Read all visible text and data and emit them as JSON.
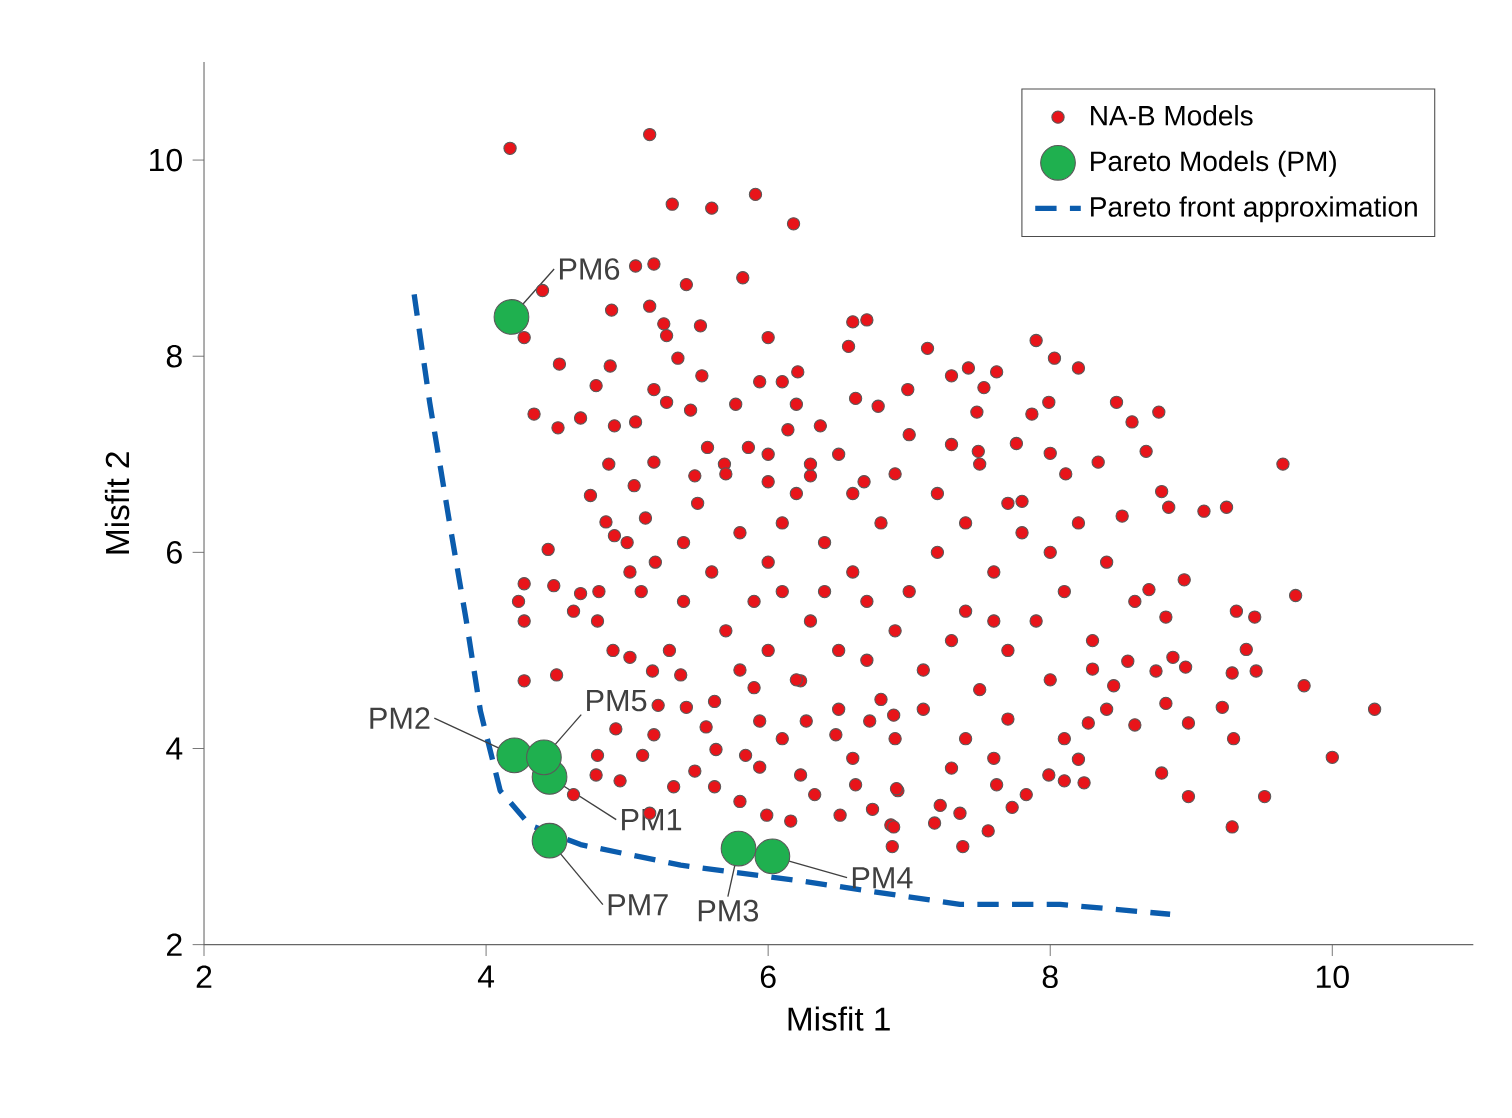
{
  "chart_data": {
    "type": "scatter",
    "xlabel": "Misfit 1",
    "ylabel": "Misfit 2",
    "xlim": [
      2,
      11
    ],
    "ylim": [
      2,
      11
    ],
    "xticks": [
      2,
      4,
      6,
      8,
      10
    ],
    "yticks": [
      2,
      4,
      6,
      8,
      10
    ],
    "legend": "top right",
    "series": [
      {
        "name": "NA-B Models",
        "marker": "circle",
        "color": "#e8141a",
        "x": [
          4.17,
          5.16,
          5.32,
          5.6,
          5.91,
          6.18,
          5.06,
          5.19,
          5.42,
          5.82,
          4.4,
          4.89,
          5.16,
          4.27,
          5.26,
          5.28,
          5.52,
          6.0,
          6.6,
          6.7,
          6.57,
          4.52,
          4.88,
          4.78,
          5.36,
          5.53,
          5.94,
          6.1,
          6.21,
          4.34,
          4.51,
          4.67,
          4.91,
          5.19,
          5.28,
          5.45,
          5.77,
          6.2,
          6.62,
          6.78,
          6.99,
          5.06,
          5.57,
          5.86,
          6.14,
          6.37,
          4.87,
          5.19,
          4.74,
          5.05,
          5.48,
          5.69,
          6.0,
          6.3,
          6.68,
          4.85,
          5.13,
          9.74,
          9.32,
          9.45,
          9.39,
          9.29,
          9.46,
          9.8,
          10.3,
          9.22,
          9.3,
          10.0,
          9.52,
          8.98,
          9.29,
          8.79,
          8.98,
          8.82,
          8.6,
          8.45,
          8.75,
          8.96,
          8.87,
          8.55,
          8.3,
          8.82,
          8.95,
          8.7,
          8.24,
          8.1,
          7.99,
          7.83,
          7.73,
          7.56,
          7.38,
          7.36,
          7.18,
          6.88,
          6.87,
          6.92,
          7.22,
          7.62,
          8.2,
          8.27,
          9.65,
          9.25,
          9.09,
          8.68,
          8.77,
          8.58,
          8.47,
          7.9,
          8.03,
          8.2,
          7.99,
          7.87,
          8.34,
          7.13,
          7.42,
          7.62,
          7.53,
          7.3,
          7.48,
          7.49,
          7.76,
          8.0,
          8.11,
          8.79,
          8.84,
          8.51,
          7.8,
          4.44,
          4.27,
          4.48,
          4.23,
          4.27,
          4.67,
          4.62,
          4.79,
          5.02,
          4.91,
          4.27,
          4.5,
          5.02,
          5.18,
          5.38,
          5.22,
          4.92,
          5.19,
          4.79,
          5.11,
          4.78,
          4.95,
          4.62,
          5.16,
          5.33,
          5.48,
          5.63,
          5.62,
          5.84,
          5.8,
          5.94,
          5.99,
          6.16,
          6.23,
          6.33,
          6.51,
          6.74,
          6.89,
          6.91,
          6.62,
          6.48,
          6.72,
          6.89,
          6.27,
          5.94,
          5.56,
          5.62,
          5.42,
          5.9,
          6.23,
          5.5,
          5.8,
          6.0,
          6.2,
          6.4,
          6.6,
          6.8,
          7.0,
          7.2,
          7.4,
          6.3,
          6.5,
          6.7,
          6.9,
          7.1,
          7.3,
          7.5,
          7.7,
          7.9,
          8.1,
          7.6,
          7.8,
          8.0,
          8.2,
          8.4,
          8.6,
          8.3,
          8.0,
          7.7,
          7.4,
          7.1,
          6.8,
          6.5,
          6.2,
          6.0,
          5.7,
          5.4,
          5.2,
          5.0,
          4.8,
          4.9,
          5.3,
          5.6,
          5.9,
          6.1,
          6.3,
          6.6,
          6.9,
          7.2,
          7.5,
          7.7,
          7.3,
          7.0,
          6.5,
          6.0,
          5.7,
          5.4,
          5.1,
          6.7,
          7.4,
          7.6,
          6.4,
          6.1,
          5.8,
          6.9,
          7.3,
          7.6,
          6.6,
          6.1,
          8.4,
          8.1
        ],
        "values": [
          10.12,
          10.26,
          9.55,
          9.51,
          9.65,
          9.35,
          8.92,
          8.94,
          8.73,
          8.8,
          8.67,
          8.47,
          8.51,
          8.19,
          8.33,
          8.21,
          8.31,
          8.19,
          8.35,
          8.37,
          8.1,
          7.92,
          7.9,
          7.7,
          7.98,
          7.8,
          7.74,
          7.74,
          7.84,
          7.41,
          7.27,
          7.37,
          7.29,
          7.66,
          7.53,
          7.45,
          7.51,
          7.51,
          7.57,
          7.49,
          7.66,
          7.33,
          7.07,
          7.07,
          7.25,
          7.29,
          6.9,
          6.92,
          6.58,
          6.68,
          6.78,
          6.9,
          6.72,
          6.78,
          6.72,
          6.31,
          6.35,
          5.56,
          5.4,
          5.34,
          5.01,
          4.77,
          4.79,
          4.64,
          4.4,
          4.42,
          4.1,
          3.91,
          3.51,
          3.51,
          3.2,
          3.75,
          4.26,
          4.46,
          4.24,
          4.64,
          4.79,
          4.83,
          4.93,
          4.89,
          4.81,
          5.34,
          5.72,
          5.62,
          3.65,
          3.67,
          3.73,
          3.53,
          3.4,
          3.16,
          3.0,
          3.34,
          3.24,
          3.0,
          3.22,
          3.57,
          3.42,
          3.63,
          3.89,
          4.26,
          6.9,
          6.46,
          6.42,
          7.03,
          7.43,
          7.33,
          7.53,
          8.16,
          7.98,
          7.88,
          7.53,
          7.41,
          6.92,
          8.08,
          7.88,
          7.84,
          7.68,
          7.8,
          7.43,
          7.03,
          7.11,
          7.01,
          6.8,
          6.62,
          6.46,
          6.37,
          6.52,
          6.03,
          5.68,
          5.66,
          5.5,
          5.3,
          5.58,
          5.4,
          5.3,
          5.8,
          6.17,
          4.69,
          4.75,
          4.93,
          4.79,
          4.75,
          4.44,
          4.2,
          4.14,
          3.93,
          3.93,
          3.73,
          3.67,
          3.53,
          3.34,
          3.61,
          3.77,
          3.99,
          3.61,
          3.93,
          3.46,
          3.81,
          3.32,
          3.26,
          3.73,
          3.53,
          3.32,
          3.38,
          3.2,
          3.59,
          3.63,
          4.14,
          4.28,
          4.34,
          4.28,
          4.28,
          4.22,
          4.48,
          4.42,
          4.62,
          4.69,
          6.5,
          6.2,
          5.9,
          6.6,
          6.1,
          5.8,
          6.3,
          5.6,
          6.0,
          5.4,
          5.3,
          5.0,
          4.9,
          5.2,
          4.8,
          5.1,
          4.6,
          5.0,
          5.3,
          5.6,
          5.8,
          6.2,
          6.0,
          6.3,
          5.9,
          5.5,
          5.1,
          4.7,
          4.3,
          4.1,
          4.4,
          4.5,
          4.4,
          4.7,
          5.0,
          5.2,
          5.5,
          5.9,
          6.1,
          5.6,
          5.0,
          5.0,
          5.8,
          5.5,
          6.3,
          6.9,
          6.6,
          6.8,
          6.6,
          6.9,
          6.5,
          7.1,
          7.2,
          7.0,
          7.0,
          6.8,
          6.1,
          5.6,
          5.5,
          6.3,
          5.3,
          5.6,
          5.6,
          4.8,
          4.1,
          3.8,
          3.9,
          3.9,
          4.1,
          4.4,
          4.1
        ]
      },
      {
        "name": "Pareto Models (PM)",
        "marker": "circle",
        "color": "#1fb04f",
        "x": [
          4.45,
          4.2,
          5.79,
          6.03,
          4.41,
          4.18,
          4.45
        ],
        "values": [
          3.71,
          3.93,
          2.98,
          2.9,
          3.91,
          8.4,
          3.06
        ]
      },
      {
        "name": "Pareto front approximation",
        "type": "line",
        "marker": "none",
        "line_style": "dashed",
        "color": "#0b5cad",
        "x": [
          3.49,
          3.6,
          3.74,
          3.86,
          3.96,
          4.1,
          4.31,
          4.67,
          5.38,
          6.23,
          7.36,
          8.07,
          8.85
        ],
        "values": [
          8.63,
          7.53,
          6.31,
          5.3,
          4.38,
          3.57,
          3.22,
          3.02,
          2.81,
          2.65,
          2.41,
          2.41,
          2.31
        ]
      }
    ],
    "annotations": [
      {
        "text": "PM1",
        "x": 4.45,
        "y": 3.71
      },
      {
        "text": "PM2",
        "x": 4.2,
        "y": 3.93
      },
      {
        "text": "PM3",
        "x": 5.79,
        "y": 2.98
      },
      {
        "text": "PM4",
        "x": 6.03,
        "y": 2.9
      },
      {
        "text": "PM5",
        "x": 4.41,
        "y": 3.91
      },
      {
        "text": "PM6",
        "x": 4.18,
        "y": 8.4
      },
      {
        "text": "PM7",
        "x": 4.45,
        "y": 3.06
      }
    ]
  }
}
